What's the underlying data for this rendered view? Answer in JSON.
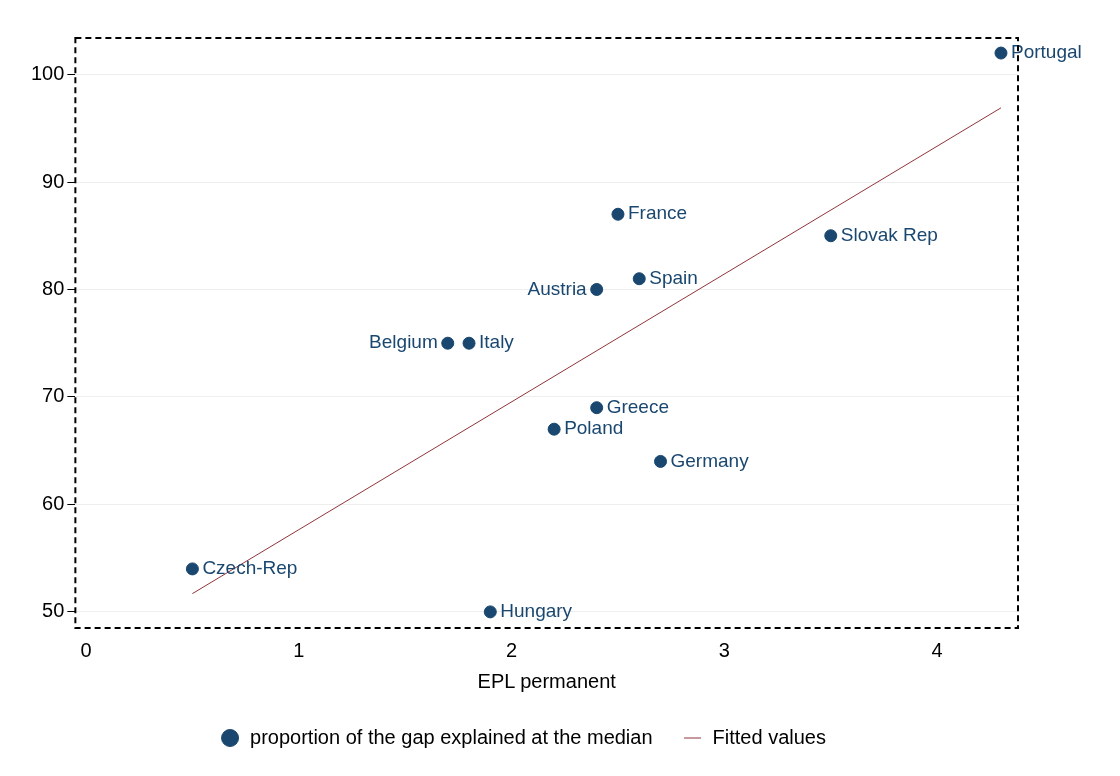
{
  "chart_data": {
    "type": "scatter",
    "xlabel": "EPL permanent",
    "xlim": [
      -0.05,
      4.38
    ],
    "xticks": [
      0,
      1,
      2,
      3,
      4
    ],
    "ylim": [
      48.5,
      103.4
    ],
    "yticks": [
      50,
      60,
      70,
      80,
      90,
      100
    ],
    "grid": "y",
    "legend": "bottom",
    "series": [
      {
        "name": "proportion of the gap explained at the median",
        "type": "scatter",
        "color": "#1a476f",
        "marker": "circle",
        "x": [
          4.3,
          2.5,
          3.5,
          2.6,
          2.4,
          1.7,
          1.8,
          2.4,
          2.2,
          2.7,
          0.5,
          1.9
        ],
        "values": [
          102,
          87,
          85,
          81,
          80,
          75,
          75,
          69,
          67,
          64,
          54,
          50
        ]
      },
      {
        "name": "Fitted values",
        "type": "line",
        "color": "#90353b",
        "marker": "none",
        "x": [
          0.5,
          4.3
        ],
        "values": [
          51.7,
          96.9
        ]
      }
    ],
    "annotations": [
      {
        "text": "Portugal",
        "x": 4.3,
        "y": 102
      },
      {
        "text": "France",
        "x": 2.5,
        "y": 87
      },
      {
        "text": "Slovak Rep",
        "x": 3.5,
        "y": 85
      },
      {
        "text": "Spain",
        "x": 2.6,
        "y": 81
      },
      {
        "text": "Austria",
        "x": 2.4,
        "y": 80
      },
      {
        "text": "Belgium",
        "x": 1.7,
        "y": 75
      },
      {
        "text": "Italy",
        "x": 1.8,
        "y": 75
      },
      {
        "text": "Greece",
        "x": 2.4,
        "y": 69
      },
      {
        "text": "Poland",
        "x": 2.2,
        "y": 67
      },
      {
        "text": "Germany",
        "x": 2.7,
        "y": 64
      },
      {
        "text": "Czech-Rep",
        "x": 0.5,
        "y": 54
      },
      {
        "text": "Hungary",
        "x": 1.9,
        "y": 50
      }
    ]
  }
}
